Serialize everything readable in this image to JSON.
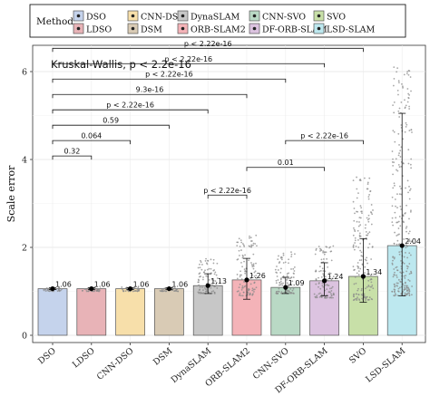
{
  "chart_data": {
    "type": "bar",
    "legend_title": "Method",
    "legend_placement": "top",
    "annotation": "Kruskal-Wallis, p < 2.2e-16",
    "ylabel": "Scale error",
    "xlabel": "",
    "ylim": [
      0,
      6.3
    ],
    "yticks": [
      0,
      2,
      4,
      6
    ],
    "grid": true,
    "categories": [
      "DSO",
      "LDSO",
      "CNN-DSO",
      "DSM",
      "DynaSLAM",
      "ORB-SLAM2",
      "CNN-SVO",
      "DF-ORB-SLAM",
      "SVO",
      "LSD-SLAM"
    ],
    "values": [
      1.06,
      1.06,
      1.06,
      1.06,
      1.13,
      1.26,
      1.09,
      1.24,
      1.34,
      2.04
    ],
    "value_labels": [
      "1.06",
      "1.06",
      "1.06",
      "1.06",
      "1.13",
      "1.26",
      "1.09",
      "1.24",
      "1.34",
      "2.04"
    ],
    "error_low": [
      1.04,
      1.04,
      1.04,
      1.04,
      0.95,
      0.82,
      0.95,
      0.9,
      0.75,
      0.9
    ],
    "error_high": [
      1.08,
      1.08,
      1.08,
      1.08,
      1.4,
      1.75,
      1.32,
      1.65,
      2.2,
      5.05
    ],
    "scatter_range": [
      [
        1.0,
        1.1
      ],
      [
        1.0,
        1.1
      ],
      [
        1.0,
        1.1
      ],
      [
        1.0,
        1.1
      ],
      [
        0.95,
        1.75
      ],
      [
        0.9,
        2.3
      ],
      [
        0.95,
        1.9
      ],
      [
        0.85,
        2.1
      ],
      [
        0.8,
        3.6
      ],
      [
        0.9,
        6.2
      ]
    ],
    "colors": [
      "#c5d3ec",
      "#e8b3b7",
      "#f7dfaa",
      "#d9cbb5",
      "#c7c7c7",
      "#f4b3b8",
      "#b9d9c5",
      "#dcc3e0",
      "#c8e0a8",
      "#bde8ef"
    ],
    "comparisons": [
      {
        "from": "DSO",
        "to": "LDSO",
        "label": "0.32"
      },
      {
        "from": "DSO",
        "to": "CNN-DSO",
        "label": "0.064"
      },
      {
        "from": "DSO",
        "to": "DSM",
        "label": "0.59"
      },
      {
        "from": "DSO",
        "to": "DynaSLAM",
        "label": "p < 2.22e-16"
      },
      {
        "from": "DSO",
        "to": "ORB-SLAM2",
        "label": "9.3e-16"
      },
      {
        "from": "DSO",
        "to": "CNN-SVO",
        "label": "p < 2.22e-16"
      },
      {
        "from": "DSO",
        "to": "DF-ORB-SLAM",
        "label": "p < 2.22e-16"
      },
      {
        "from": "DSO",
        "to": "SVO",
        "label": "p < 2.22e-16"
      },
      {
        "from": "DynaSLAM",
        "to": "ORB-SLAM2",
        "label": "p < 2.22e-16"
      },
      {
        "from": "ORB-SLAM2",
        "to": "DF-ORB-SLAM",
        "label": "0.01"
      },
      {
        "from": "CNN-SVO",
        "to": "SVO",
        "label": "p < 2.22e-16"
      }
    ]
  }
}
